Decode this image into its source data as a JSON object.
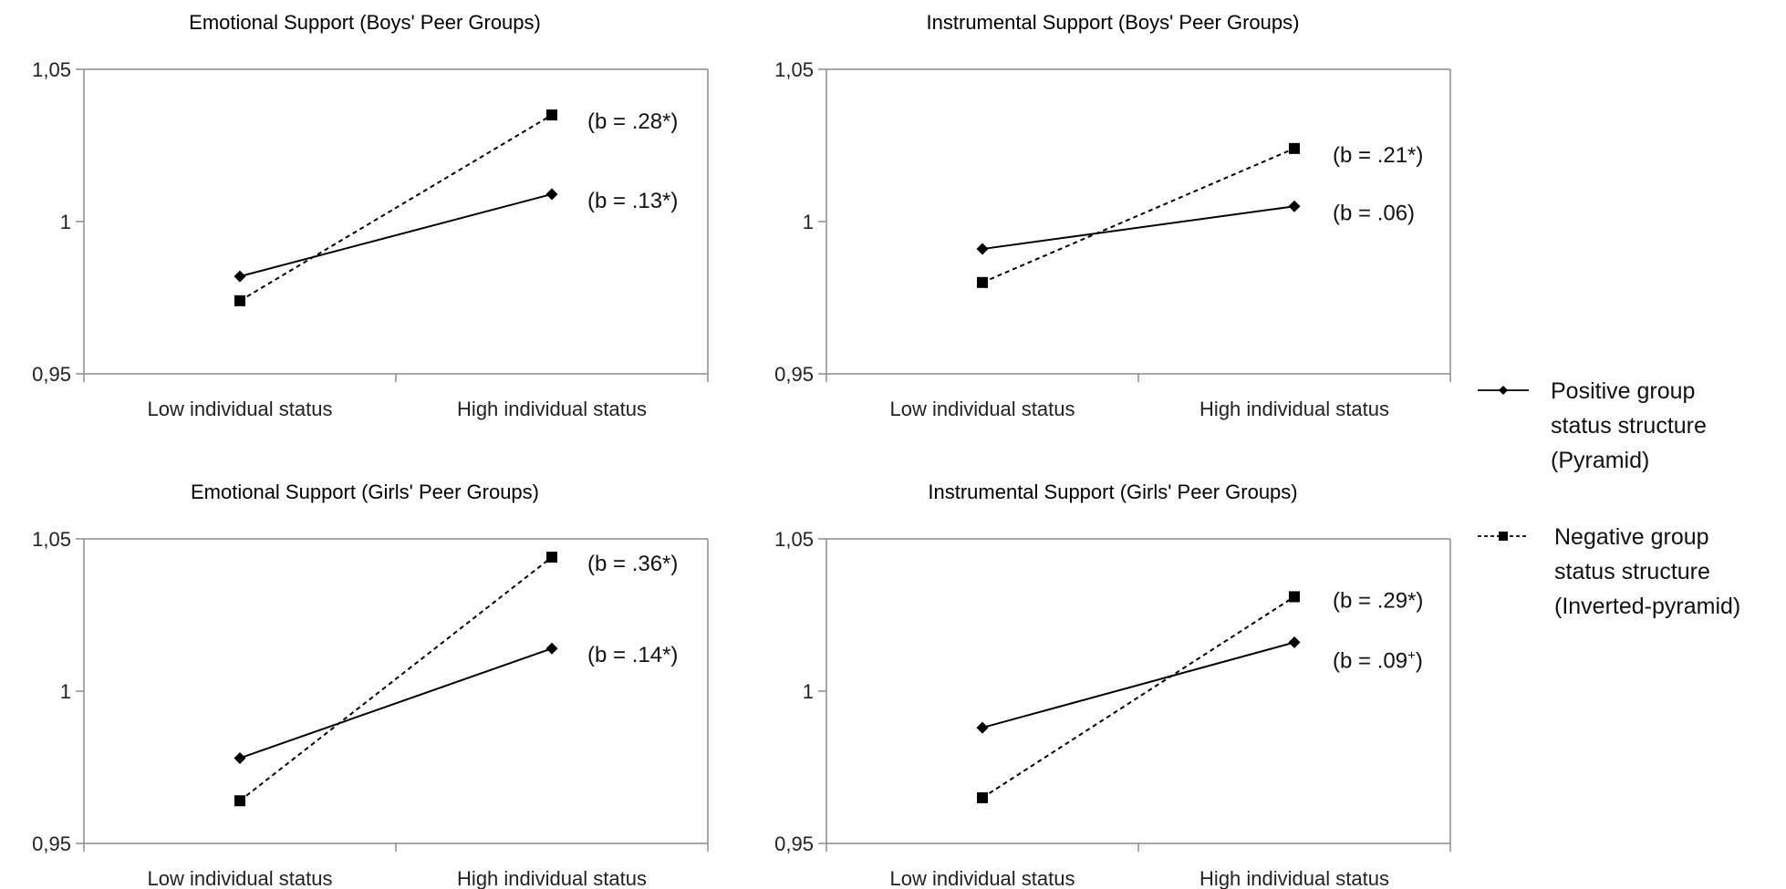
{
  "chart_data": [
    {
      "type": "line",
      "title": "Emotional Support (Boys' Peer Groups)",
      "categories": [
        "Low individual status",
        "High individual status"
      ],
      "ylim": [
        0.95,
        1.05
      ],
      "yticks": [
        "1,05",
        "1",
        "0,95"
      ],
      "series": [
        {
          "name": "Positive group status structure (Pyramid)",
          "values": [
            0.982,
            1.009
          ],
          "label": "(b = .13*)"
        },
        {
          "name": "Negative group status structure (Inverted-pyramid)",
          "values": [
            0.974,
            1.035
          ],
          "label": "(b = .28*)"
        }
      ]
    },
    {
      "type": "line",
      "title": "Instrumental Support (Boys' Peer Groups)",
      "categories": [
        "Low individual status",
        "High individual status"
      ],
      "ylim": [
        0.95,
        1.05
      ],
      "yticks": [
        "1,05",
        "1",
        "0,95"
      ],
      "series": [
        {
          "name": "Positive group status structure (Pyramid)",
          "values": [
            0.991,
            1.005
          ],
          "label": "(b = .06)"
        },
        {
          "name": "Negative group status structure (Inverted-pyramid)",
          "values": [
            0.98,
            1.024
          ],
          "label": "(b = .21*)"
        }
      ]
    },
    {
      "type": "line",
      "title": "Emotional Support (Girls' Peer Groups)",
      "categories": [
        "Low individual status",
        "High individual status"
      ],
      "ylim": [
        0.95,
        1.05
      ],
      "yticks": [
        "1,05",
        "1",
        "0,95"
      ],
      "series": [
        {
          "name": "Positive group status structure (Pyramid)",
          "values": [
            0.978,
            1.014
          ],
          "label": "(b = .14*)"
        },
        {
          "name": "Negative group status structure (Inverted-pyramid)",
          "values": [
            0.964,
            1.044
          ],
          "label": "(b = .36*)"
        }
      ]
    },
    {
      "type": "line",
      "title": "Instrumental Support (Girls' Peer Groups)",
      "categories": [
        "Low individual status",
        "High individual status"
      ],
      "ylim": [
        0.95,
        1.05
      ],
      "yticks": [
        "1,05",
        "1",
        "0,95"
      ],
      "series": [
        {
          "name": "Positive group status structure (Pyramid)",
          "values": [
            0.988,
            1.016
          ],
          "label": "(b = .09",
          "label_sup": "+",
          "label_end": ")"
        },
        {
          "name": "Negative group status structure (Inverted-pyramid)",
          "values": [
            0.965,
            1.031
          ],
          "label": "(b = .29*)"
        }
      ]
    }
  ],
  "legend": {
    "position": "right",
    "items": [
      {
        "lines": [
          "Positive group",
          "status structure",
          "(Pyramid)"
        ],
        "marker": "diamond",
        "style": "solid"
      },
      {
        "lines": [
          "Negative group",
          "status structure",
          "(Inverted-pyramid)"
        ],
        "marker": "square",
        "style": "dashed"
      }
    ]
  },
  "colors": {
    "line": "#000000",
    "axis": "#8c8c8c"
  }
}
